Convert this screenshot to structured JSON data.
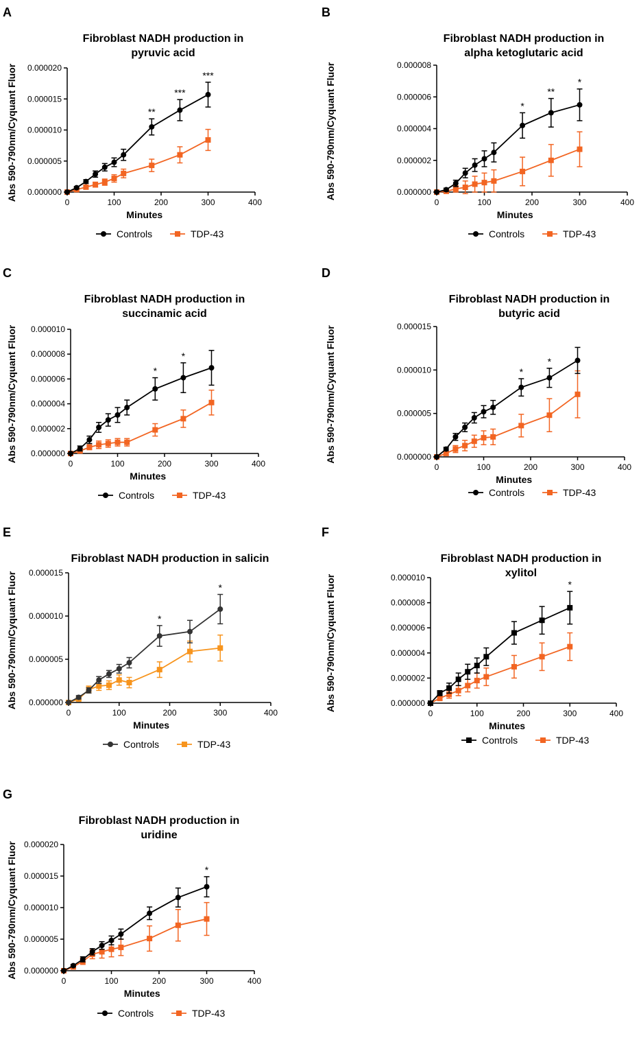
{
  "chart_data": [
    {
      "id": "A",
      "type": "line",
      "title": [
        "Fibroblast NADH production in",
        "pyruvic acid"
      ],
      "xlabel": "Minutes",
      "ylabel": "Abs 590-790nm/Cyquant Fluor",
      "xlim": [
        0,
        400
      ],
      "xticks": [
        0,
        100,
        200,
        300,
        400
      ],
      "ylim": [
        0,
        2e-05
      ],
      "yticks": [
        "0.000000",
        "0.000005",
        "0.000010",
        "0.000015",
        "0.000020"
      ],
      "x": [
        0,
        20,
        40,
        60,
        80,
        100,
        120,
        180,
        240,
        300
      ],
      "series": [
        {
          "name": "Controls",
          "color": "#000000",
          "marker": "circle",
          "values": [
            0,
            7e-07,
            1.7e-06,
            2.9e-06,
            4e-06,
            4.8e-06,
            6e-06,
            1.05e-05,
            1.32e-05,
            1.57e-05
          ],
          "errors": [
            0,
            2e-07,
            3e-07,
            5e-07,
            6e-07,
            7e-07,
            9e-07,
            1.3e-06,
            1.7e-06,
            2e-06
          ]
        },
        {
          "name": "TDP-43",
          "color": "#f26522",
          "marker": "square",
          "values": [
            0,
            4e-07,
            8e-07,
            1.2e-06,
            1.6e-06,
            2.2e-06,
            3e-06,
            4.3e-06,
            6e-06,
            8.4e-06
          ],
          "errors": [
            0,
            2e-07,
            3e-07,
            4e-07,
            5e-07,
            6e-07,
            7e-07,
            1e-06,
            1.3e-06,
            1.7e-06
          ]
        }
      ],
      "annotations": [
        {
          "x": 180,
          "label": "**"
        },
        {
          "x": 240,
          "label": "***"
        },
        {
          "x": 300,
          "label": "***"
        }
      ]
    },
    {
      "id": "B",
      "type": "line",
      "title": [
        "Fibroblast NADH production in",
        "alpha ketoglutaric acid"
      ],
      "xlabel": "Minutes",
      "ylabel": "Abs 590-790nm/Cyquant Fluor",
      "xlim": [
        0,
        400
      ],
      "xticks": [
        0,
        100,
        200,
        300,
        400
      ],
      "ylim": [
        0,
        8e-06
      ],
      "yticks": [
        "0.000000",
        "0.000002",
        "0.000004",
        "0.000006",
        "0.000008"
      ],
      "x": [
        0,
        20,
        40,
        60,
        80,
        100,
        120,
        180,
        240,
        300
      ],
      "series": [
        {
          "name": "Controls",
          "color": "#000000",
          "marker": "circle",
          "values": [
            0,
            1.5e-07,
            5.5e-07,
            1.2e-06,
            1.7e-06,
            2.1e-06,
            2.5e-06,
            4.2e-06,
            5e-06,
            5.5e-06
          ],
          "errors": [
            0,
            1e-07,
            2e-07,
            3e-07,
            4e-07,
            5e-07,
            6e-07,
            8e-07,
            9e-07,
            1e-06
          ]
        },
        {
          "name": "TDP-43",
          "color": "#f26522",
          "marker": "square",
          "values": [
            0,
            5e-08,
            2e-07,
            3e-07,
            5e-07,
            6e-07,
            7e-07,
            1.3e-06,
            2e-06,
            2.7e-06
          ],
          "errors": [
            0,
            1e-07,
            2e-07,
            4e-07,
            5e-07,
            6e-07,
            7e-07,
            9e-07,
            1e-06,
            1.1e-06
          ]
        }
      ],
      "annotations": [
        {
          "x": 180,
          "label": "*"
        },
        {
          "x": 240,
          "label": "**"
        },
        {
          "x": 300,
          "label": "*"
        }
      ]
    },
    {
      "id": "C",
      "type": "line",
      "title": [
        "Fibroblast NADH production in",
        "succinamic acid"
      ],
      "xlabel": "Minutes",
      "ylabel": "Abs 590-790nm/Cyquant Fluor",
      "xlim": [
        0,
        400
      ],
      "xticks": [
        0,
        100,
        200,
        300,
        400
      ],
      "ylim": [
        0,
        1e-05
      ],
      "yticks": [
        "0.000000",
        "0.000002",
        "0.000004",
        "0.000006",
        "0.000008",
        "0.000010"
      ],
      "x": [
        0,
        20,
        40,
        60,
        80,
        100,
        120,
        180,
        240,
        300
      ],
      "series": [
        {
          "name": "Controls",
          "color": "#000000",
          "marker": "circle",
          "values": [
            0,
            4e-07,
            1.1e-06,
            2.1e-06,
            2.7e-06,
            3.1e-06,
            3.7e-06,
            5.2e-06,
            6.1e-06,
            6.9e-06
          ],
          "errors": [
            0,
            2e-07,
            3e-07,
            4e-07,
            5e-07,
            6e-07,
            6e-07,
            9e-07,
            1.2e-06,
            1.4e-06
          ]
        },
        {
          "name": "TDP-43",
          "color": "#f26522",
          "marker": "square",
          "values": [
            0,
            2e-07,
            5e-07,
            7e-07,
            8e-07,
            9e-07,
            9e-07,
            1.9e-06,
            2.8e-06,
            4.1e-06
          ],
          "errors": [
            0,
            1e-07,
            2e-07,
            3e-07,
            3e-07,
            3e-07,
            3e-07,
            5e-07,
            7e-07,
            1e-06
          ]
        }
      ],
      "annotations": [
        {
          "x": 180,
          "label": "*"
        },
        {
          "x": 240,
          "label": "*"
        }
      ]
    },
    {
      "id": "D",
      "type": "line",
      "title": [
        "Fibroblast NADH production in",
        "butyric acid"
      ],
      "xlabel": "Minutes",
      "ylabel": "Abs 590-790nm/Cyquant Fluor",
      "xlim": [
        0,
        400
      ],
      "xticks": [
        0,
        100,
        200,
        300,
        400
      ],
      "ylim": [
        0,
        1.5e-05
      ],
      "yticks": [
        "0.000000",
        "0.000005",
        "0.000010",
        "0.000015"
      ],
      "x": [
        0,
        20,
        40,
        60,
        80,
        100,
        120,
        180,
        240,
        300
      ],
      "series": [
        {
          "name": "Controls",
          "color": "#000000",
          "marker": "circle",
          "values": [
            0,
            9e-07,
            2.3e-06,
            3.4e-06,
            4.5e-06,
            5.2e-06,
            5.7e-06,
            8e-06,
            9.1e-06,
            1.11e-05
          ],
          "errors": [
            0,
            2e-07,
            4e-07,
            5e-07,
            6e-07,
            7e-07,
            8e-07,
            1e-06,
            1.1e-06,
            1.5e-06
          ]
        },
        {
          "name": "TDP-43",
          "color": "#f26522",
          "marker": "square",
          "values": [
            0,
            4e-07,
            9e-07,
            1.3e-06,
            1.8e-06,
            2.2e-06,
            2.3e-06,
            3.6e-06,
            4.8e-06,
            7.2e-06
          ],
          "errors": [
            0,
            2e-07,
            4e-07,
            6e-07,
            7e-07,
            8e-07,
            9e-07,
            1.3e-06,
            1.9e-06,
            2.7e-06
          ]
        }
      ],
      "annotations": [
        {
          "x": 180,
          "label": "*"
        },
        {
          "x": 240,
          "label": "*"
        }
      ]
    },
    {
      "id": "E",
      "type": "line",
      "title": [
        "Fibroblast NADH production in salicin"
      ],
      "xlabel": "Minutes",
      "ylabel": "Abs 590-790nm/Cyquant Fluor",
      "xlim": [
        0,
        400
      ],
      "xticks": [
        0,
        100,
        200,
        300,
        400
      ],
      "ylim": [
        0,
        1.5e-05
      ],
      "yticks": [
        "0.000000",
        "0.000005",
        "0.000010",
        "0.000015"
      ],
      "x": [
        0,
        20,
        40,
        60,
        80,
        100,
        120,
        180,
        240,
        300
      ],
      "series": [
        {
          "name": "Controls",
          "color": "#333333",
          "marker": "circle",
          "values": [
            0,
            6e-07,
            1.4e-06,
            2.6e-06,
            3.3e-06,
            3.9e-06,
            4.6e-06,
            7.7e-06,
            8.2e-06,
            1.08e-05
          ],
          "errors": [
            0,
            2e-07,
            3e-07,
            4e-07,
            4e-07,
            5e-07,
            6e-07,
            1.2e-06,
            1.3e-06,
            1.7e-06
          ]
        },
        {
          "name": "TDP-43",
          "color": "#f7941d",
          "marker": "square",
          "values": [
            0,
            4e-07,
            1.5e-06,
            1.9e-06,
            2e-06,
            2.6e-06,
            2.3e-06,
            3.8e-06,
            5.9e-06,
            6.3e-06
          ],
          "errors": [
            0,
            2e-07,
            4e-07,
            5e-07,
            5e-07,
            6e-07,
            6e-07,
            9e-07,
            1.2e-06,
            1.5e-06
          ]
        }
      ],
      "annotations": [
        {
          "x": 180,
          "label": "*"
        },
        {
          "x": 300,
          "label": "*"
        }
      ]
    },
    {
      "id": "F",
      "type": "line",
      "title": [
        "Fibroblast NADH production in",
        "xylitol"
      ],
      "xlabel": "Minutes",
      "ylabel": "Abs 590-790nm/Cyquant Fluor",
      "xlim": [
        0,
        400
      ],
      "xticks": [
        0,
        100,
        200,
        300,
        400
      ],
      "ylim": [
        0,
        1e-05
      ],
      "yticks": [
        "0.000000",
        "0.000002",
        "0.000004",
        "0.000006",
        "0.000008",
        "0.000010"
      ],
      "x": [
        0,
        20,
        40,
        60,
        80,
        100,
        120,
        180,
        240,
        300
      ],
      "series": [
        {
          "name": "Controls",
          "color": "#000000",
          "marker": "square",
          "values": [
            0,
            8e-07,
            1.2e-06,
            1.9e-06,
            2.5e-06,
            3e-06,
            3.7e-06,
            5.6e-06,
            6.6e-06,
            7.6e-06
          ],
          "errors": [
            0,
            2e-07,
            4e-07,
            5e-07,
            6e-07,
            6e-07,
            7e-07,
            9e-07,
            1.1e-06,
            1.3e-06
          ]
        },
        {
          "name": "TDP-43",
          "color": "#f26522",
          "marker": "square",
          "values": [
            0,
            4e-07,
            7e-07,
            1e-06,
            1.4e-06,
            1.8e-06,
            2.1e-06,
            2.9e-06,
            3.7e-06,
            4.5e-06
          ],
          "errors": [
            0,
            2e-07,
            3e-07,
            4e-07,
            5e-07,
            6e-07,
            7e-07,
            9e-07,
            1.1e-06,
            1.1e-06
          ]
        }
      ],
      "annotations": [
        {
          "x": 300,
          "label": "*"
        }
      ]
    },
    {
      "id": "G",
      "type": "line",
      "title": [
        "Fibroblast NADH production in",
        "uridine"
      ],
      "xlabel": "Minutes",
      "ylabel": "Abs 590-790nm/Cyquant Fluor",
      "xlim": [
        0,
        400
      ],
      "xticks": [
        0,
        100,
        200,
        300,
        400
      ],
      "ylim": [
        0,
        2e-05
      ],
      "yticks": [
        "0.000000",
        "0.000005",
        "0.000010",
        "0.000015",
        "0.000020"
      ],
      "x": [
        0,
        20,
        40,
        60,
        80,
        100,
        120,
        180,
        240,
        300
      ],
      "series": [
        {
          "name": "Controls",
          "color": "#000000",
          "marker": "circle",
          "values": [
            0,
            8e-07,
            1.8e-06,
            3e-06,
            4e-06,
            4.8e-06,
            5.8e-06,
            9.1e-06,
            1.16e-05,
            1.33e-05
          ],
          "errors": [
            0,
            2e-07,
            4e-07,
            5e-07,
            6e-07,
            7e-07,
            8e-07,
            1e-06,
            1.5e-06,
            1.6e-06
          ]
        },
        {
          "name": "TDP-43",
          "color": "#f26522",
          "marker": "square",
          "values": [
            0,
            6e-07,
            1.5e-06,
            2.6e-06,
            3e-06,
            3.4e-06,
            3.7e-06,
            5.1e-06,
            7.2e-06,
            8.2e-06
          ],
          "errors": [
            0,
            2e-07,
            5e-07,
            7e-07,
            1e-06,
            1.2e-06,
            1.3e-06,
            2e-06,
            2.5e-06,
            2.6e-06
          ]
        }
      ],
      "annotations": [
        {
          "x": 300,
          "label": "*"
        }
      ]
    }
  ]
}
